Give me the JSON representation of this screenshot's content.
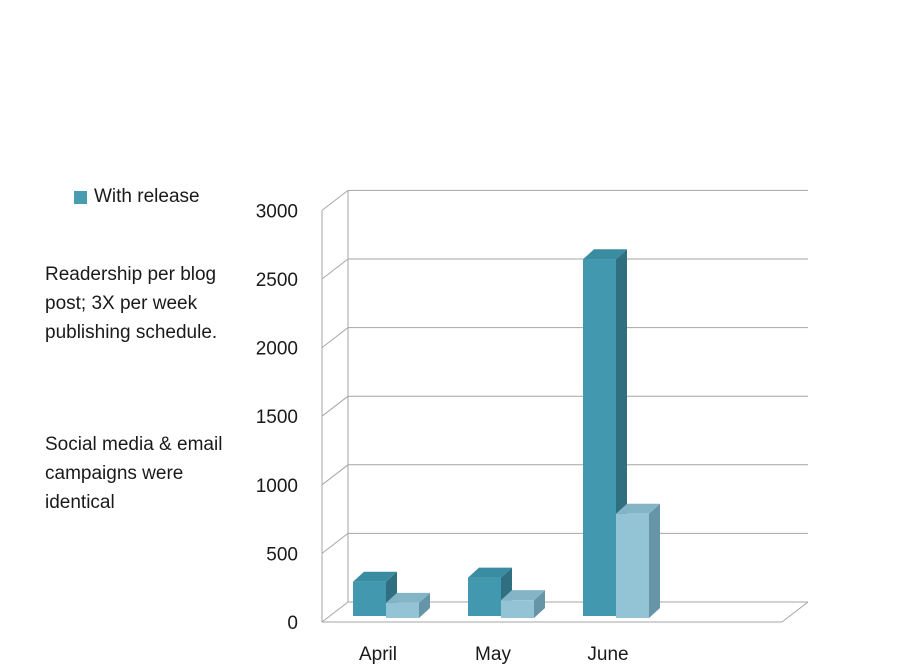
{
  "legend": {
    "label": "With release"
  },
  "notes": [
    "Readership per blog post; 3X per week publishing schedule.",
    "Social media & email campaigns were identical"
  ],
  "colors": {
    "series1_front": "#4299af",
    "series1_top": "#3a8ca2",
    "series1_side": "#2f6f80",
    "series2_front": "#93c4d6",
    "series2_top": "#84b5c7",
    "series2_side": "#6595a6",
    "grid": "#a6a6a6"
  },
  "chart_data": {
    "type": "bar",
    "categories": [
      "April",
      "May",
      "June"
    ],
    "series": [
      {
        "name": "With release",
        "values": [
          250,
          280,
          2600
        ]
      },
      {
        "values": [
          110,
          130,
          760
        ]
      }
    ],
    "ylim": [
      0,
      3000
    ],
    "yticks": [
      "0",
      "500",
      "1000",
      "1500",
      "2000",
      "2500",
      "3000"
    ],
    "grid": true,
    "legend_position": "top-left"
  }
}
